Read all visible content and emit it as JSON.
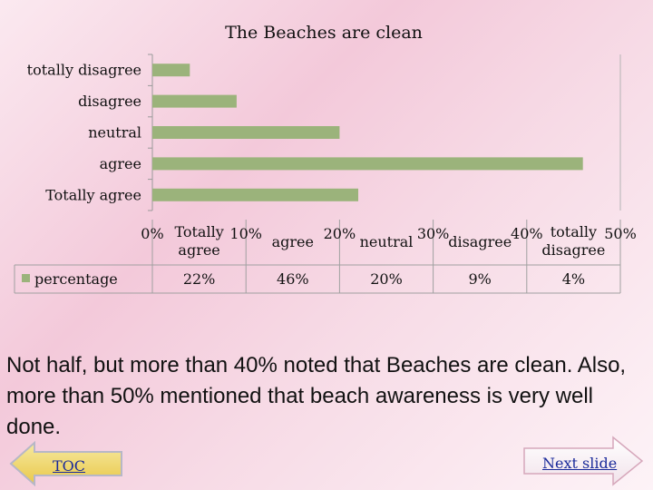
{
  "chart_data": {
    "type": "bar",
    "orientation": "horizontal",
    "title": "The Beaches are clean",
    "categories": [
      "Totally agree",
      "agree",
      "neutral",
      "disagree",
      "totally disagree"
    ],
    "axis_labels": [
      "Totally agree",
      "agree",
      "neutral",
      "disagree",
      "totally disagree"
    ],
    "series": [
      {
        "name": "percentage",
        "values": [
          22,
          46,
          20,
          9,
          4
        ],
        "labels": [
          "22%",
          "46%",
          "20%",
          "9%",
          "4%"
        ]
      }
    ],
    "x_ticks": [
      "0%",
      "10%",
      "20%",
      "30%",
      "40%",
      "50%"
    ],
    "xlim": [
      0,
      50
    ],
    "bar_color": "#9bb37b",
    "data_table": true,
    "legend": "left of data table"
  },
  "note": "Not half, but more than 40% noted that Beaches are clean. Also, more than 50% mentioned that beach awareness is very well done.",
  "nav": {
    "toc_label": "TOC",
    "next_label": "Next slide"
  }
}
